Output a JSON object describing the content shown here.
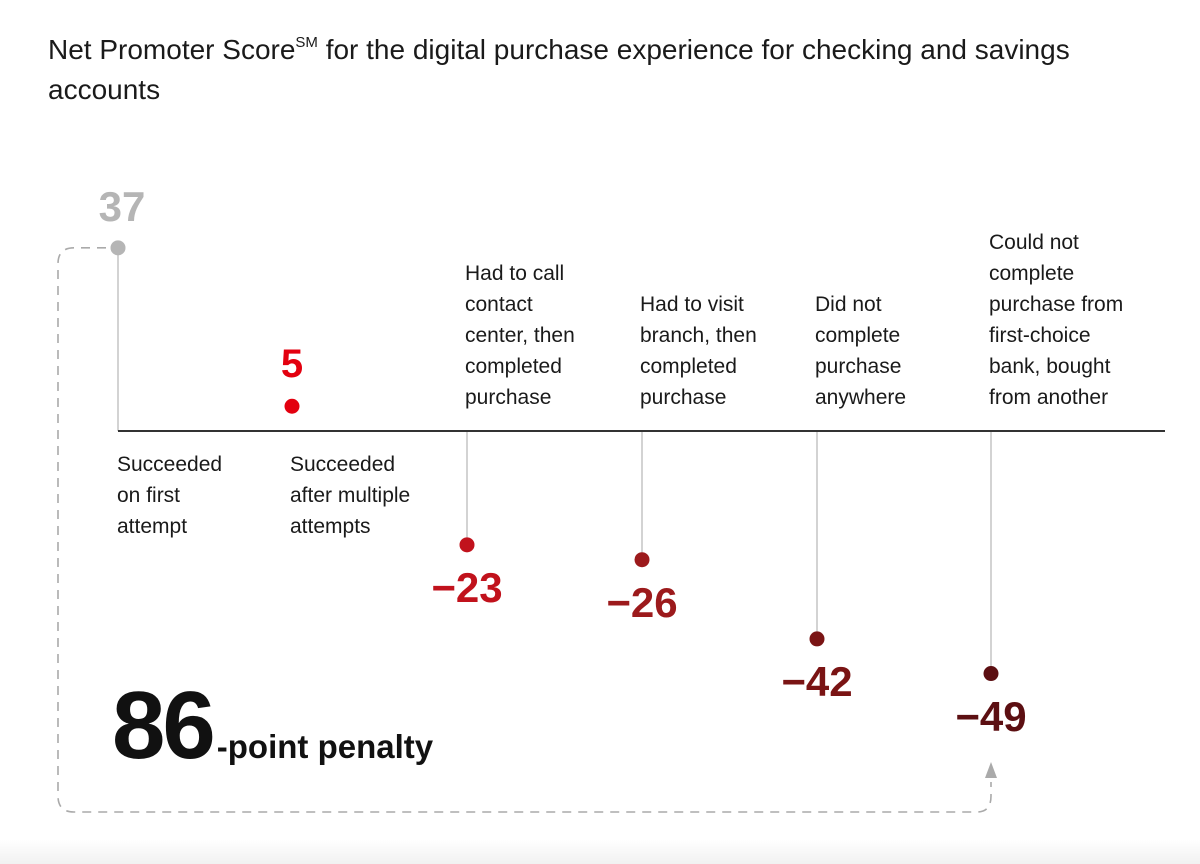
{
  "title_main": "Net Promoter Score",
  "title_sup": "SM",
  "title_rest": " for the digital purchase experience for checking and savings accounts",
  "colors": {
    "gray": "#b5b5b5",
    "red": "#e3000f",
    "mid_red": "#c1121c",
    "dark_red": "#9c1a1c",
    "darker_red": "#7a1414",
    "darkest_red": "#5c0f12",
    "axis": "#333333",
    "stem": "#c8c8c8",
    "bracket": "#aaaaaa"
  },
  "chart_data": {
    "type": "scatter",
    "categories": [
      "Succeeded\non first\nattempt",
      "Succeeded\nafter multiple\nattempts",
      "Had to call\ncontact\ncenter, then\ncompleted\npurchase",
      "Had to visit\nbranch, then\ncompleted\npurchase",
      "Did not\ncomplete\npurchase\nanywhere",
      "Could not\ncomplete\npurchase from\nfirst-choice\nbank, bought\nfrom another"
    ],
    "values": [
      37,
      5,
      -23,
      -26,
      -42,
      -49
    ],
    "value_labels": [
      "37",
      "5",
      "−23",
      "−26",
      "−42",
      "−49"
    ],
    "title": "Net Promoter Score for the digital purchase experience for checking and savings accounts",
    "xlabel": "",
    "ylabel": "",
    "grid": false,
    "annotation": {
      "number": "86",
      "text": "-point penalty"
    }
  }
}
